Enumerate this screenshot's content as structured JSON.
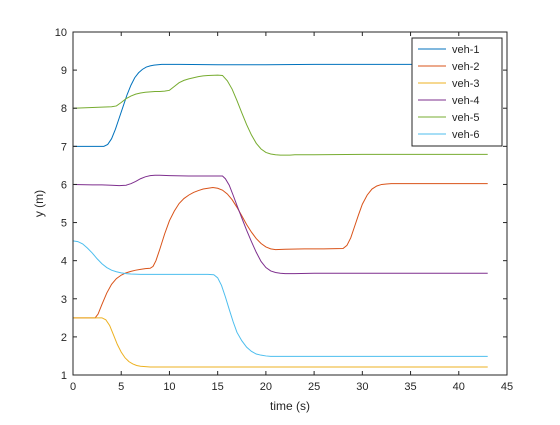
{
  "chart_data": {
    "type": "line",
    "title": "",
    "xlabel": "time (s)",
    "ylabel": "y (m)",
    "xlim": [
      0,
      45
    ],
    "ylim": [
      1,
      10
    ],
    "xticks": [
      0,
      5,
      10,
      15,
      20,
      25,
      30,
      35,
      40,
      45
    ],
    "yticks": [
      1,
      2,
      3,
      4,
      5,
      6,
      7,
      8,
      9,
      10
    ],
    "grid": false,
    "legend_position": "top-right",
    "series": [
      {
        "name": "veh-1",
        "color": "#0072BD",
        "x": [
          0,
          3.2,
          3.6,
          4.0,
          4.4,
          4.8,
          5.2,
          5.6,
          6.0,
          6.4,
          6.8,
          7.2,
          7.6,
          8.0,
          8.4,
          8.8,
          9.2,
          9.6,
          10.0,
          11,
          15,
          20,
          25,
          30,
          35,
          40,
          43
        ],
        "y": [
          7.0,
          7.0,
          7.05,
          7.2,
          7.45,
          7.75,
          8.05,
          8.35,
          8.6,
          8.8,
          8.93,
          9.02,
          9.08,
          9.11,
          9.13,
          9.14,
          9.15,
          9.15,
          9.15,
          9.15,
          9.14,
          9.14,
          9.15,
          9.15,
          9.15,
          9.15,
          9.15
        ]
      },
      {
        "name": "veh-2",
        "color": "#D95319",
        "x": [
          0,
          2.3,
          2.6,
          3.0,
          3.5,
          4.0,
          4.5,
          5.0,
          5.5,
          6.0,
          6.5,
          7.0,
          7.5,
          8.0,
          8.3,
          8.6,
          9.0,
          9.5,
          10.0,
          10.5,
          11.0,
          11.5,
          12.0,
          12.5,
          13.0,
          13.5,
          14.0,
          14.5,
          15.0,
          15.5,
          16.0,
          16.5,
          17.0,
          17.5,
          18.0,
          18.5,
          19.0,
          19.5,
          20.0,
          20.5,
          21.0,
          22.0,
          24,
          26,
          28.0,
          28.4,
          28.8,
          29.2,
          29.6,
          30.0,
          30.5,
          31.0,
          31.5,
          32.0,
          32.5,
          33.0,
          33.5,
          34.0,
          34.5,
          35.0,
          36,
          38,
          40,
          43
        ],
        "y": [
          2.5,
          2.5,
          2.6,
          2.85,
          3.15,
          3.38,
          3.53,
          3.62,
          3.68,
          3.72,
          3.75,
          3.77,
          3.79,
          3.8,
          3.85,
          4.0,
          4.3,
          4.7,
          5.05,
          5.3,
          5.5,
          5.63,
          5.72,
          5.79,
          5.84,
          5.88,
          5.9,
          5.92,
          5.9,
          5.85,
          5.75,
          5.6,
          5.4,
          5.18,
          4.95,
          4.75,
          4.58,
          4.45,
          4.36,
          4.31,
          4.29,
          4.3,
          4.31,
          4.31,
          4.32,
          4.4,
          4.6,
          4.9,
          5.2,
          5.48,
          5.72,
          5.88,
          5.96,
          6.0,
          6.01,
          6.02,
          6.02,
          6.02,
          6.02,
          6.02,
          6.02,
          6.02,
          6.02,
          6.02
        ]
      },
      {
        "name": "veh-3",
        "color": "#EDB120",
        "x": [
          0,
          3.0,
          3.4,
          3.8,
          4.2,
          4.6,
          5.0,
          5.4,
          5.8,
          6.2,
          6.6,
          7.0,
          7.5,
          8.0,
          9.0,
          10,
          15,
          20,
          25,
          30,
          35,
          40,
          43
        ],
        "y": [
          2.5,
          2.5,
          2.45,
          2.3,
          2.05,
          1.8,
          1.6,
          1.45,
          1.35,
          1.29,
          1.25,
          1.23,
          1.22,
          1.21,
          1.21,
          1.21,
          1.21,
          1.21,
          1.21,
          1.21,
          1.21,
          1.21,
          1.21
        ]
      },
      {
        "name": "veh-4",
        "color": "#7E2F8E",
        "x": [
          0,
          2.0,
          3.0,
          4.0,
          4.8,
          5.5,
          6.0,
          6.5,
          7.0,
          7.5,
          8.0,
          8.5,
          9.0,
          10,
          12,
          14,
          15.5,
          15.8,
          16.2,
          16.6,
          17.0,
          17.5,
          18.0,
          18.5,
          19.0,
          19.5,
          20.0,
          20.5,
          21.0,
          21.5,
          22.0,
          22.5,
          23.0,
          25,
          30,
          35,
          40,
          43
        ],
        "y": [
          6.0,
          5.99,
          5.99,
          5.98,
          5.97,
          5.98,
          6.02,
          6.08,
          6.15,
          6.2,
          6.23,
          6.24,
          6.24,
          6.23,
          6.22,
          6.22,
          6.22,
          6.15,
          5.98,
          5.72,
          5.45,
          5.12,
          4.8,
          4.5,
          4.22,
          3.98,
          3.82,
          3.73,
          3.69,
          3.67,
          3.66,
          3.66,
          3.66,
          3.67,
          3.67,
          3.67,
          3.67,
          3.67
        ]
      },
      {
        "name": "veh-5",
        "color": "#77AC30",
        "x": [
          0,
          2.0,
          3.0,
          4.0,
          4.5,
          5.0,
          5.5,
          6.0,
          6.5,
          7.0,
          7.5,
          8.0,
          8.5,
          9.0,
          9.5,
          10.0,
          10.5,
          11.0,
          11.5,
          12.0,
          12.5,
          13.0,
          13.5,
          14.0,
          15.0,
          15.5,
          16.0,
          16.5,
          17.0,
          17.5,
          18.0,
          18.5,
          19.0,
          19.5,
          20.0,
          20.5,
          21.0,
          21.5,
          22.0,
          22.5,
          23,
          25,
          30,
          35,
          40,
          43
        ],
        "y": [
          8.0,
          8.02,
          8.03,
          8.04,
          8.06,
          8.15,
          8.25,
          8.32,
          8.37,
          8.4,
          8.42,
          8.43,
          8.44,
          8.44,
          8.45,
          8.47,
          8.57,
          8.67,
          8.73,
          8.77,
          8.8,
          8.83,
          8.85,
          8.86,
          8.87,
          8.86,
          8.72,
          8.5,
          8.2,
          7.88,
          7.57,
          7.3,
          7.08,
          6.93,
          6.84,
          6.8,
          6.78,
          6.77,
          6.77,
          6.77,
          6.78,
          6.78,
          6.79,
          6.79,
          6.79,
          6.79
        ]
      },
      {
        "name": "veh-6",
        "color": "#4DBEEE",
        "x": [
          0,
          0.5,
          1.0,
          1.5,
          2.0,
          2.5,
          3.0,
          3.5,
          4.0,
          4.5,
          5.0,
          5.5,
          6.0,
          7,
          8,
          10,
          12,
          14,
          14.6,
          15.0,
          15.4,
          15.8,
          16.2,
          16.6,
          17.0,
          17.5,
          18.0,
          18.5,
          19.0,
          19.5,
          20.0,
          20.5,
          21.0,
          22,
          25,
          30,
          35,
          40,
          43
        ],
        "y": [
          4.52,
          4.5,
          4.44,
          4.33,
          4.2,
          4.05,
          3.92,
          3.82,
          3.75,
          3.71,
          3.68,
          3.66,
          3.65,
          3.64,
          3.64,
          3.64,
          3.64,
          3.64,
          3.63,
          3.55,
          3.35,
          3.05,
          2.72,
          2.4,
          2.12,
          1.9,
          1.73,
          1.62,
          1.55,
          1.52,
          1.5,
          1.49,
          1.49,
          1.49,
          1.49,
          1.49,
          1.49,
          1.49,
          1.49
        ]
      }
    ]
  }
}
